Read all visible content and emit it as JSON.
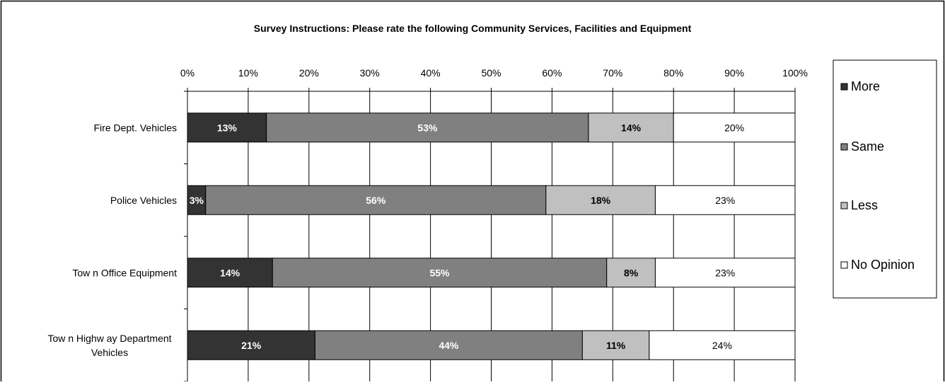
{
  "chart_data": {
    "type": "bar",
    "orientation": "horizontal",
    "stacked": true,
    "title": "Survey Instructions:  Please rate the following Community Services, Facilities and Equipment",
    "categories": [
      "Fire Dept. Vehicles",
      "Police Vehicles",
      "Town Office Equipment",
      "Town Highway Department Vehicles"
    ],
    "category_lines": [
      [
        "Fire Dept. Vehicles"
      ],
      [
        "Police Vehicles"
      ],
      [
        "Tow n Office Equipment"
      ],
      [
        "Tow n Highw ay Department",
        "Vehicles"
      ]
    ],
    "series": [
      {
        "name": "More",
        "color": "#333333",
        "label_color": "#ffffff",
        "labels_bold": true,
        "values": [
          13,
          3,
          14,
          21
        ],
        "labels": [
          "13%",
          "3%",
          "14%",
          "21%"
        ]
      },
      {
        "name": "Same",
        "color": "#808080",
        "label_color": "#ffffff",
        "labels_bold": true,
        "values": [
          53,
          56,
          55,
          44
        ],
        "labels": [
          "53%",
          "56%",
          "55%",
          "44%"
        ]
      },
      {
        "name": "Less",
        "color": "#c0c0c0",
        "label_color": "#000000",
        "labels_bold": true,
        "values": [
          14,
          18,
          8,
          11
        ],
        "labels": [
          "14%",
          "18%",
          "8%",
          "11%"
        ]
      },
      {
        "name": "No Opinion",
        "color": "#ffffff",
        "label_color": "#000000",
        "labels_bold": false,
        "values": [
          20,
          23,
          23,
          24
        ],
        "labels": [
          "20%",
          "23%",
          "23%",
          "24%"
        ]
      }
    ],
    "x_ticks": [
      "0%",
      "10%",
      "20%",
      "30%",
      "40%",
      "50%",
      "60%",
      "70%",
      "80%",
      "90%",
      "100%"
    ],
    "xlim": [
      0,
      100
    ],
    "x_axis_position": "top",
    "grid": true,
    "legend_position": "right"
  }
}
